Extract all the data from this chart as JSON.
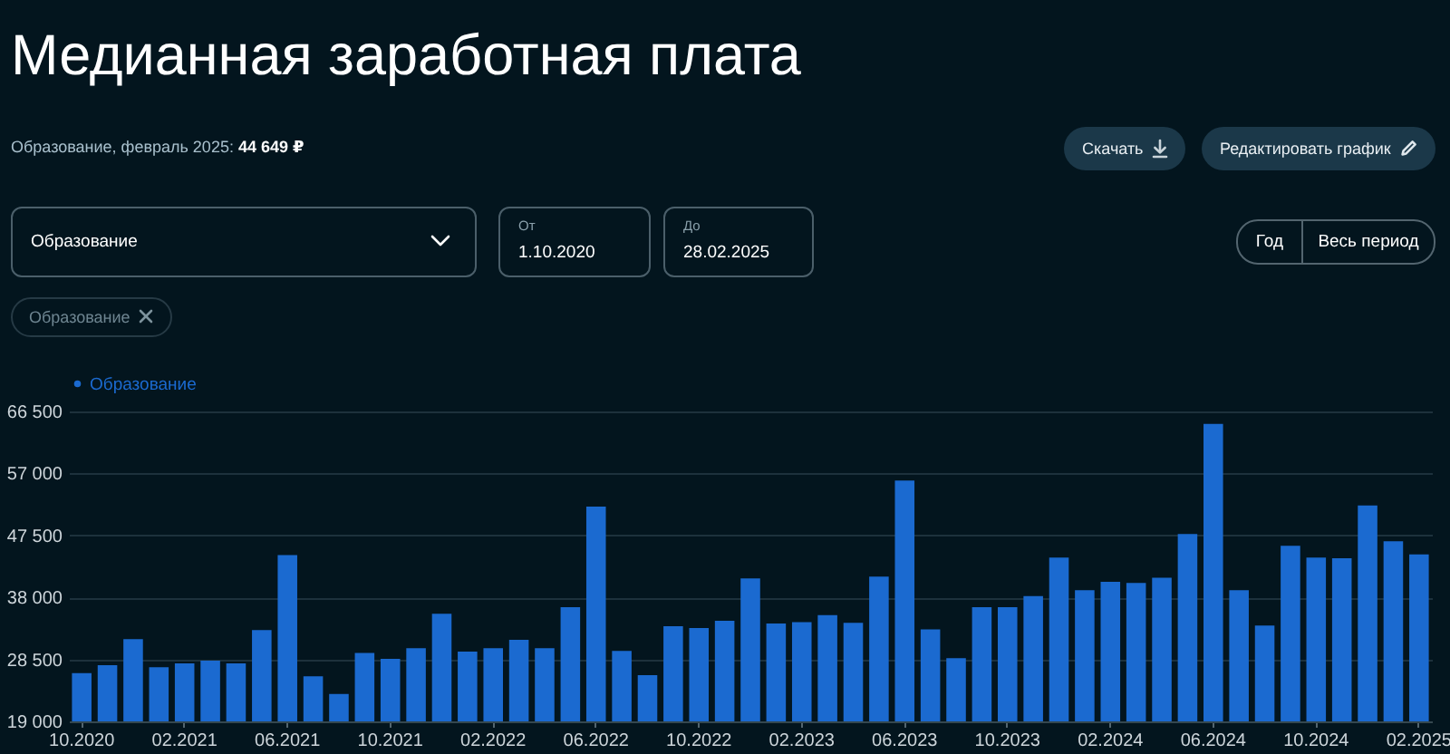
{
  "chart_data": {
    "type": "bar",
    "title": "Медианная заработная плата",
    "subtitle": "Образование, февраль 2025: 44 649 ₽",
    "categories": [
      "10.2020",
      null,
      null,
      null,
      "02.2021",
      null,
      null,
      null,
      "06.2021",
      null,
      null,
      null,
      "10.2021",
      null,
      null,
      null,
      "02.2022",
      null,
      null,
      null,
      "06.2022",
      null,
      null,
      null,
      "10.2022",
      null,
      null,
      null,
      "02.2023",
      null,
      null,
      null,
      "06.2023",
      null,
      null,
      null,
      "10.2023",
      null,
      null,
      null,
      "02.2024",
      null,
      null,
      null,
      "06.2024",
      null,
      null,
      null,
      "10.2024",
      null,
      null,
      null,
      "02.2025"
    ],
    "series": [
      {
        "name": "Образование",
        "color": "#1b6ad0",
        "values": [
          26400,
          27600,
          31600,
          27300,
          27900,
          28300,
          27900,
          33000,
          44500,
          25900,
          23200,
          29500,
          28600,
          30200,
          35500,
          29700,
          30200,
          31500,
          30200,
          36500,
          51900,
          29800,
          26100,
          33600,
          33300,
          34400,
          40900,
          34000,
          34200,
          35300,
          34100,
          41200,
          55900,
          33100,
          28700,
          36500,
          36500,
          38200,
          44100,
          39100,
          40400,
          40200,
          41000,
          47700,
          64600,
          39100,
          33700,
          45900,
          44100,
          44000,
          52100,
          46600,
          44600
        ]
      }
    ],
    "ylim": [
      19000,
      66500
    ],
    "yticks": [
      {
        "value": 19000,
        "label": "19 000"
      },
      {
        "value": 28500,
        "label": "28 500"
      },
      {
        "value": 38000,
        "label": "38 000"
      },
      {
        "value": 47500,
        "label": "47 500"
      },
      {
        "value": 57000,
        "label": "57 000"
      },
      {
        "value": 66500,
        "label": "66 500"
      }
    ],
    "grid": "y",
    "legend": "top left",
    "annotations": [
      "Скачать",
      "Редактировать график",
      "Образование",
      "От",
      "1.10.2020",
      "До",
      "28.02.2025",
      "Год",
      "Весь период",
      "Образование"
    ]
  }
}
